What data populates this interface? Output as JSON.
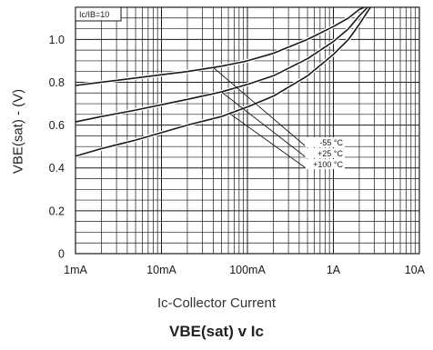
{
  "chart_data": {
    "type": "line",
    "title": "VBE(sat) v Ic",
    "xlabel": "Ic-Collector Current",
    "ylabel": "VBE(sat) - (V)",
    "x_scale": "log",
    "xlim": [
      0.001,
      10
    ],
    "ylim": [
      0,
      1.15
    ],
    "x_ticks": [
      {
        "value": 0.001,
        "label": "1mA"
      },
      {
        "value": 0.01,
        "label": "10mA"
      },
      {
        "value": 0.1,
        "label": "100mA"
      },
      {
        "value": 1,
        "label": "1A"
      },
      {
        "value": 10,
        "label": "10A"
      }
    ],
    "y_ticks": [
      {
        "value": 0,
        "label": "0"
      },
      {
        "value": 0.2,
        "label": "0.2"
      },
      {
        "value": 0.4,
        "label": "0.4"
      },
      {
        "value": 0.6,
        "label": "0.6"
      },
      {
        "value": 0.8,
        "label": "0.8"
      },
      {
        "value": 1.0,
        "label": "1.0"
      }
    ],
    "grid": true,
    "condition_label": "Ic/IB=10",
    "series": [
      {
        "name": "-55 °C",
        "x": [
          0.001,
          0.002,
          0.005,
          0.01,
          0.02,
          0.05,
          0.1,
          0.2,
          0.5,
          1,
          1.5,
          2,
          2.3
        ],
        "y": [
          0.785,
          0.8,
          0.82,
          0.835,
          0.85,
          0.875,
          0.9,
          0.935,
          1.0,
          1.06,
          1.1,
          1.14,
          1.16
        ]
      },
      {
        "name": "+25 °C",
        "x": [
          0.001,
          0.002,
          0.005,
          0.01,
          0.02,
          0.05,
          0.1,
          0.2,
          0.5,
          1,
          1.5,
          2,
          2.5
        ],
        "y": [
          0.615,
          0.64,
          0.67,
          0.695,
          0.72,
          0.755,
          0.79,
          0.83,
          0.91,
          0.99,
          1.05,
          1.11,
          1.16
        ]
      },
      {
        "name": "+100 °C",
        "x": [
          0.001,
          0.002,
          0.005,
          0.01,
          0.02,
          0.05,
          0.1,
          0.2,
          0.5,
          1,
          1.5,
          2,
          2.5,
          2.7
        ],
        "y": [
          0.455,
          0.49,
          0.53,
          0.565,
          0.6,
          0.64,
          0.685,
          0.735,
          0.83,
          0.93,
          1.0,
          1.07,
          1.13,
          1.16
        ]
      }
    ]
  }
}
